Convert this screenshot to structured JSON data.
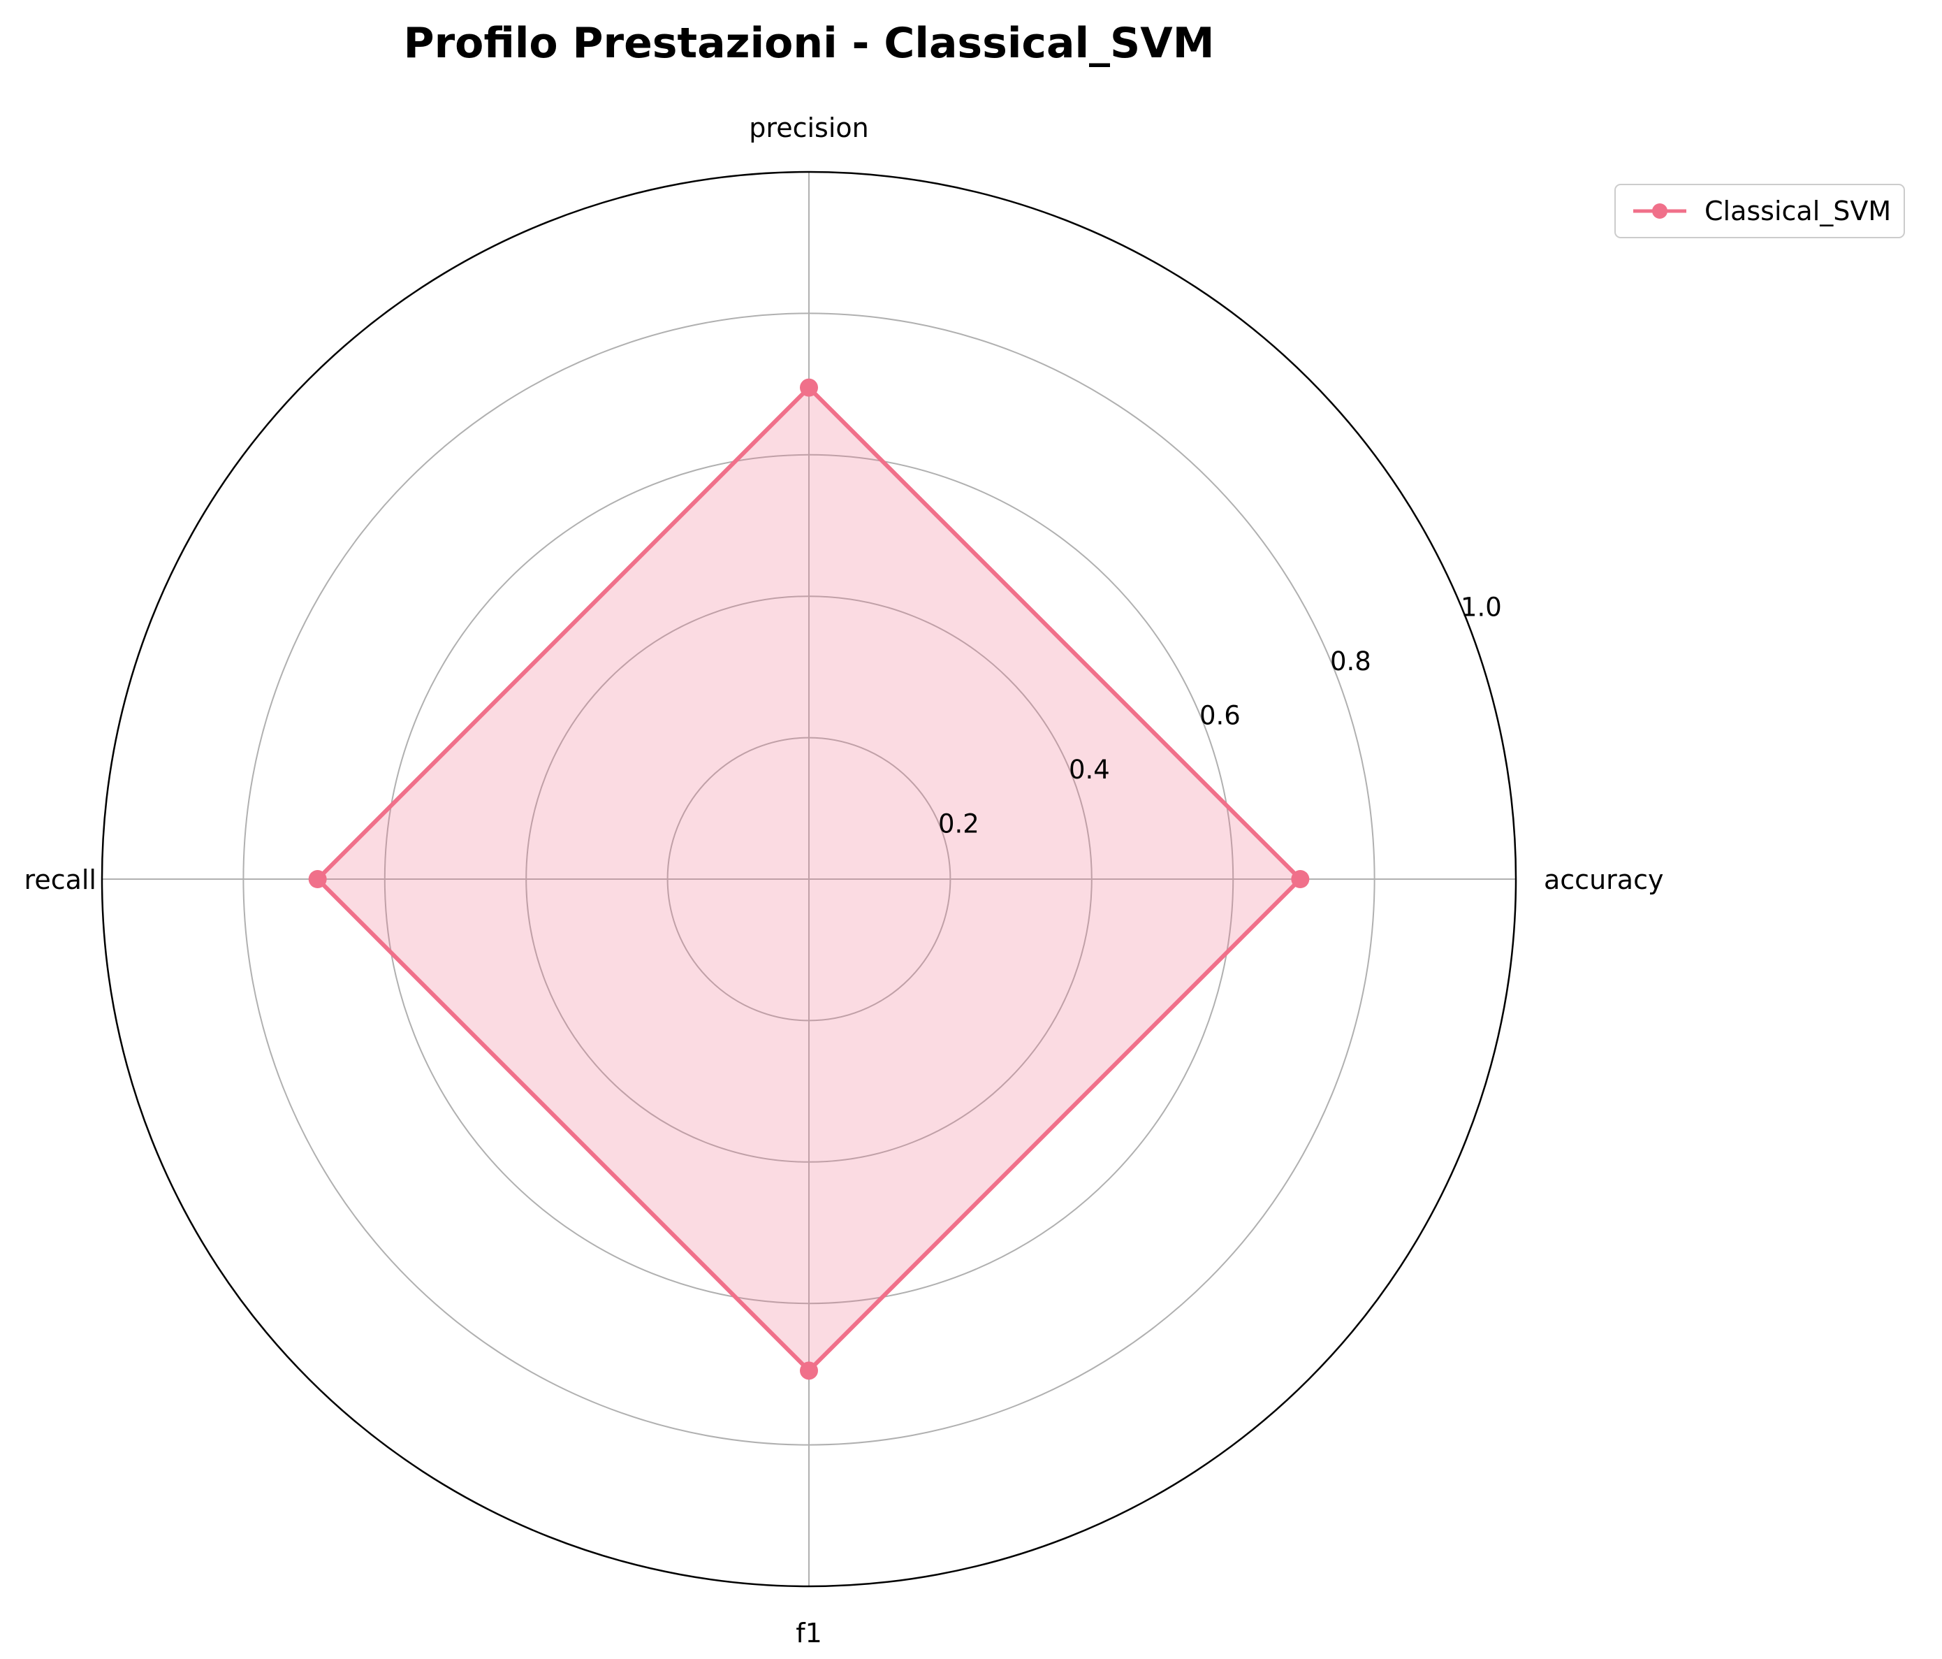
{
  "chart_data": {
    "type": "radar",
    "title": "Profilo Prestazioni - Classical_SVM",
    "axes": [
      "accuracy",
      "precision",
      "recall",
      "f1"
    ],
    "r_ticks": [
      "0.2",
      "0.4",
      "0.6",
      "0.8",
      "1.0"
    ],
    "r_tick_values": [
      0.2,
      0.4,
      0.6,
      0.8,
      1.0
    ],
    "rlim": [
      0,
      1.0
    ],
    "grid": true,
    "legend_position": "top-right",
    "series": [
      {
        "name": "Classical_SVM",
        "values": [
          0.695,
          0.695,
          0.695,
          0.695
        ],
        "color": "#f0708a"
      }
    ]
  }
}
